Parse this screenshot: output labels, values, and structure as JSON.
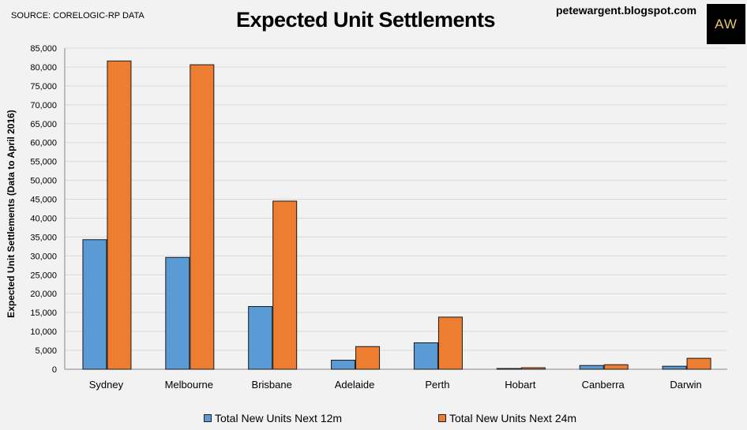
{
  "header": {
    "source": "SOURCE: CORELOGIC-RP DATA",
    "site": "petewargent.blogspot.com",
    "logo": "AW"
  },
  "colors": {
    "series_12m": "#5b9bd5",
    "series_24m": "#ed7d31",
    "grid": "#d9d9d9"
  },
  "chart_data": {
    "type": "bar",
    "title": "Expected Unit Settlements",
    "xlabel": "",
    "ylabel": "Expected Unit Settlements (Data to April 2016)",
    "ylim": [
      0,
      85000
    ],
    "ytick_step": 5000,
    "grid": true,
    "legend": "bottom",
    "categories": [
      "Sydney",
      "Melbourne",
      "Brisbane",
      "Adelaide",
      "Perth",
      "Hobart",
      "Canberra",
      "Darwin"
    ],
    "series": [
      {
        "name": "Total New Units Next 12m",
        "values": [
          34300,
          29600,
          16600,
          2400,
          7000,
          200,
          1000,
          800
        ]
      },
      {
        "name": "Total New Units Next 24m",
        "values": [
          81600,
          80600,
          44500,
          6000,
          13800,
          400,
          1200,
          2900
        ]
      }
    ]
  }
}
